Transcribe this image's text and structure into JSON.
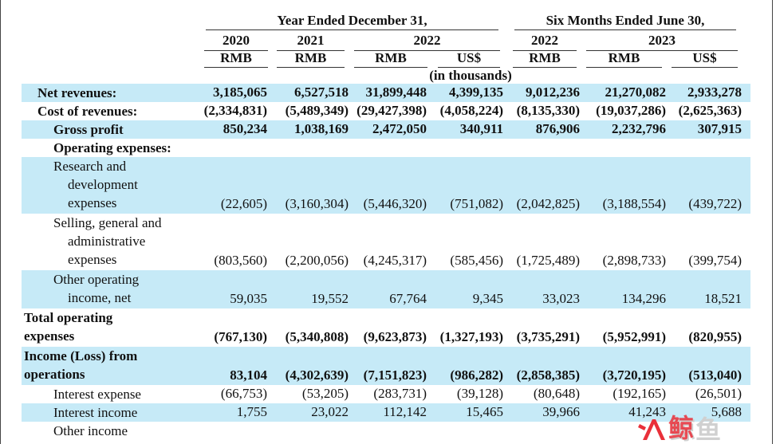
{
  "header": {
    "group_year": "Year Ended December 31,",
    "group_six": "Six Months Ended June 30,",
    "years": [
      "2020",
      "2021",
      "2022",
      "2022",
      "2023"
    ],
    "currencies": [
      "RMB",
      "RMB",
      "RMB",
      "US$",
      "RMB",
      "RMB",
      "US$"
    ],
    "units": "(in thousands)"
  },
  "rows": [
    {
      "lines": [
        "Net revenues:"
      ],
      "level": 1,
      "bold": true,
      "shade": true,
      "values": [
        "3,185,065",
        "6,527,518",
        "31,899,448",
        "4,399,135",
        "9,012,236",
        "21,270,082",
        "2,933,278"
      ]
    },
    {
      "lines": [
        "Cost of revenues:"
      ],
      "level": 1,
      "bold": true,
      "shade": false,
      "values": [
        "(2,334,831)",
        "(5,489,349)",
        "(29,427,398)",
        "(4,058,224)",
        "(8,135,330)",
        "(19,037,286)",
        "(2,625,363)"
      ]
    },
    {
      "lines": [
        "Gross profit"
      ],
      "level": 2,
      "bold": true,
      "shade": true,
      "values": [
        "850,234",
        "1,038,169",
        "2,472,050",
        "340,911",
        "876,906",
        "2,232,796",
        "307,915"
      ]
    },
    {
      "lines": [
        "Operating expenses:"
      ],
      "level": 2,
      "bold": true,
      "shade": false,
      "values": [
        "",
        "",
        "",
        "",
        "",
        "",
        ""
      ]
    },
    {
      "lines": [
        "Research and",
        "development",
        "expenses"
      ],
      "level": 3,
      "bold": false,
      "shade": true,
      "values": [
        "(22,605)",
        "(3,160,304)",
        "(5,446,320)",
        "(751,082)",
        "(2,042,825)",
        "(3,188,554)",
        "(439,722)"
      ]
    },
    {
      "lines": [
        "Selling, general and",
        "administrative",
        "expenses"
      ],
      "level": 3,
      "bold": false,
      "shade": false,
      "values": [
        "(803,560)",
        "(2,200,056)",
        "(4,245,317)",
        "(585,456)",
        "(1,725,489)",
        "(2,898,733)",
        "(399,754)"
      ]
    },
    {
      "lines": [
        "Other operating",
        "income, net"
      ],
      "level": 3,
      "bold": false,
      "shade": true,
      "values": [
        "59,035",
        "19,552",
        "67,764",
        "9,345",
        "33,023",
        "134,296",
        "18,521"
      ]
    },
    {
      "lines": [
        "Total operating",
        "expenses"
      ],
      "level": 0,
      "bold": true,
      "shade": false,
      "values": [
        "(767,130)",
        "(5,340,808)",
        "(9,623,873)",
        "(1,327,193)",
        "(3,735,291)",
        "(5,952,991)",
        "(820,955)"
      ]
    },
    {
      "lines": [
        "Income (Loss) from",
        "operations"
      ],
      "level": 0,
      "bold": true,
      "shade": true,
      "values": [
        "83,104",
        "(4,302,639)",
        "(7,151,823)",
        "(986,282)",
        "(2,858,385)",
        "(3,720,195)",
        "(513,040)"
      ]
    },
    {
      "lines": [
        "Interest expense"
      ],
      "level": 2,
      "bold": false,
      "shade": false,
      "values": [
        "(66,753)",
        "(53,205)",
        "(283,731)",
        "(39,128)",
        "(80,648)",
        "(192,165)",
        "(26,501)"
      ]
    },
    {
      "lines": [
        "Interest income"
      ],
      "level": 2,
      "bold": false,
      "shade": true,
      "values": [
        "1,755",
        "23,022",
        "112,142",
        "15,465",
        "39,966",
        "41,243",
        "5,688"
      ]
    },
    {
      "lines": [
        "Other income"
      ],
      "level": 2,
      "bold": false,
      "shade": false,
      "values": [
        "",
        "",
        "",
        "",
        "",
        "",
        ""
      ]
    }
  ],
  "watermark": {
    "text": "鲸鱼",
    "colors": [
      "#e9303a",
      "#c8c8c8"
    ]
  }
}
